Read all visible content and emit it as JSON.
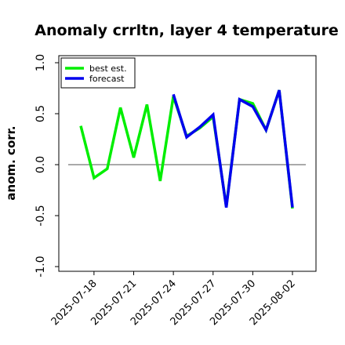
{
  "chart_data": {
    "type": "line",
    "title": "Anomaly crrltn, layer 4 temperature",
    "ylabel": "anom. corr.",
    "xlabel": "",
    "ylim": [
      -1.0,
      1.0
    ],
    "yticks": [
      -1.0,
      -0.5,
      0.0,
      0.5,
      1.0
    ],
    "ytick_labels": [
      "-1.0",
      "-0.5",
      "0.0",
      "0.5",
      "1.0"
    ],
    "x": [
      "2025-07-17",
      "2025-07-18",
      "2025-07-19",
      "2025-07-20",
      "2025-07-21",
      "2025-07-22",
      "2025-07-23",
      "2025-07-24",
      "2025-07-25",
      "2025-07-26",
      "2025-07-27",
      "2025-07-28",
      "2025-07-29",
      "2025-07-30",
      "2025-07-31",
      "2025-08-01",
      "2025-08-02"
    ],
    "xtick_labels": [
      "2025-07-18",
      "2025-07-21",
      "2025-07-24",
      "2025-07-27",
      "2025-07-30",
      "2025-08-02"
    ],
    "highlight_tick": "2025-07-24",
    "highlight_color": "#228B22",
    "zero_line": true,
    "grid": false,
    "legend_position": "top-left",
    "series": [
      {
        "name": "best est.",
        "color": "#00ee00",
        "values": [
          0.38,
          -0.13,
          -0.04,
          0.56,
          0.07,
          0.59,
          -0.16,
          0.67,
          0.28,
          0.36,
          0.47,
          -0.41,
          0.64,
          0.6,
          0.34,
          0.73,
          -0.43
        ]
      },
      {
        "name": "forecast",
        "color": "#0000ee",
        "values": [
          null,
          null,
          null,
          null,
          null,
          null,
          null,
          0.69,
          0.27,
          0.37,
          0.49,
          -0.42,
          0.64,
          0.57,
          0.34,
          0.73,
          -0.42
        ]
      }
    ]
  }
}
